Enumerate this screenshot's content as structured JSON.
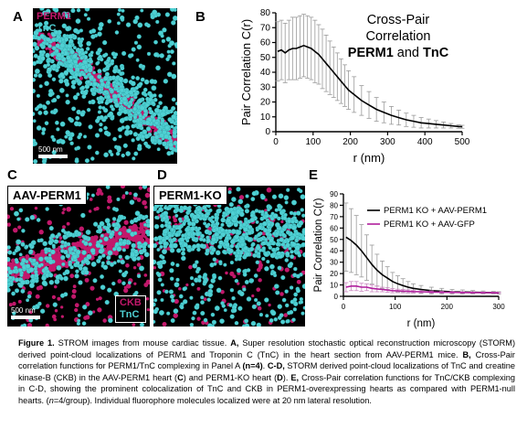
{
  "panels": {
    "a": {
      "letter": "A",
      "label1": "PERM1",
      "label2": "TnC",
      "scale": "500 nm"
    },
    "b": {
      "letter": "B"
    },
    "c": {
      "letter": "C",
      "title": "AAV-PERM1",
      "label1": "CKB",
      "label2": "TnC",
      "scale": "500 nm"
    },
    "d": {
      "letter": "D",
      "title": "PERM1-KO"
    },
    "e": {
      "letter": "E"
    }
  },
  "colors": {
    "perm1": "#c2186b",
    "tnc": "#4fd0d3",
    "ckb": "#c2186b",
    "black_line": "#000000",
    "gfp_line": "#b01f9d",
    "error": "#9a9a9a"
  },
  "chart_data": [
    {
      "type": "line",
      "title_lines": [
        "Cross-Pair",
        "Correlation"
      ],
      "title_bold": "PERM1",
      "title_and": " and ",
      "title_bold2": "TnC",
      "xlabel": "r (nm)",
      "ylabel": "Pair Correlation C(r)",
      "xlim": [
        0,
        500
      ],
      "ylim": [
        0,
        80
      ],
      "xticks": [
        0,
        100,
        200,
        300,
        400,
        500
      ],
      "yticks": [
        0,
        10,
        20,
        30,
        40,
        50,
        60,
        70,
        80
      ],
      "series": [
        {
          "x": [
            5,
            15,
            25,
            35,
            45,
            55,
            65,
            75,
            85,
            95,
            105,
            115,
            125,
            135,
            145,
            155,
            165,
            175,
            185,
            195,
            210,
            230,
            250,
            270,
            290,
            310,
            330,
            350,
            370,
            390,
            410,
            430,
            450,
            470,
            490,
            500
          ],
          "y": [
            54,
            55,
            53,
            55,
            56,
            56,
            57,
            58,
            57,
            56,
            54,
            52,
            49,
            46,
            43,
            40,
            37,
            34,
            31,
            28,
            25,
            21,
            18,
            15,
            13,
            11,
            9.5,
            8,
            7,
            6,
            5.5,
            5,
            4.5,
            4,
            3.5,
            3.3
          ],
          "err": [
            20,
            20,
            20,
            20,
            21,
            21,
            21,
            21,
            21,
            21,
            21,
            20,
            20,
            19,
            18,
            17,
            16,
            15,
            14,
            13,
            12,
            10,
            9,
            8,
            7,
            6,
            5,
            4.5,
            4,
            3.5,
            3,
            2.5,
            2,
            1.5,
            1.2,
            1
          ]
        }
      ]
    },
    {
      "type": "line",
      "xlabel": "r (nm)",
      "ylabel": "Pair Correlation C(r)",
      "xlim": [
        0,
        300
      ],
      "ylim": [
        0,
        90
      ],
      "xticks": [
        0,
        100,
        200,
        300
      ],
      "yticks": [
        0,
        10,
        20,
        30,
        40,
        50,
        60,
        70,
        80,
        90
      ],
      "series": [
        {
          "name": "PERM1 KO + AAV-PERM1",
          "x": [
            5,
            15,
            25,
            35,
            45,
            55,
            65,
            75,
            85,
            95,
            105,
            115,
            125,
            135,
            150,
            170,
            190,
            210,
            230,
            250,
            270,
            290,
            300
          ],
          "y": [
            52,
            49,
            45,
            40,
            34,
            28,
            23,
            19,
            16,
            13,
            11,
            9.5,
            8,
            7,
            6,
            5,
            4.5,
            4,
            3.8,
            3.6,
            3.4,
            3.2,
            3
          ],
          "err": [
            30,
            28,
            26,
            23,
            20,
            17,
            14,
            12,
            10,
            8,
            7,
            6,
            5,
            4,
            3.5,
            3,
            2.5,
            2,
            1.8,
            1.5,
            1.3,
            1.1,
            1
          ]
        },
        {
          "name": "PERM1 KO + AAV-GFP",
          "x": [
            5,
            15,
            25,
            35,
            45,
            55,
            65,
            75,
            85,
            95,
            105,
            115,
            125,
            135,
            150,
            170,
            190,
            210,
            230,
            250,
            270,
            290,
            300
          ],
          "y": [
            8,
            9,
            9,
            8,
            8,
            7,
            6.5,
            6,
            5.5,
            5,
            4.8,
            4.6,
            4.4,
            4.2,
            4,
            3.8,
            3.6,
            3.5,
            3.4,
            3.3,
            3.2,
            3.1,
            3
          ],
          "err": [
            4,
            4,
            4,
            3.5,
            3,
            3,
            2.5,
            2,
            2,
            1.8,
            1.5,
            1.5,
            1.3,
            1.2,
            1,
            1,
            0.8,
            0.8,
            0.7,
            0.6,
            0.6,
            0.5,
            0.5
          ]
        }
      ]
    }
  ],
  "caption": {
    "fig": "Figure 1.",
    "s1": " STROM images from mouse cardiac tissue. ",
    "a_lbl": "A,",
    "s2": " Super resolution stochastic optical reconstruction microscopy (STORM) derived point-cloud localizations of PERM1 and Troponin C (TnC) in the heart section from AAV-PERM1 mice. ",
    "b_lbl": "B,",
    "s3": " Cross-Pair correlation functions for PERM1/TnC complexing in Panel A ",
    "n1": "(n=4)",
    "s4": ". ",
    "cd_lbl": "C-D,",
    "s5": " STORM derived point-cloud localizations of TnC and creatine kinase-B (CKB) in the AAV-PERM1 heart (",
    "c_ref": "C",
    "s6": ") and PERM1-KO heart (",
    "d_ref": "D",
    "s7": "). ",
    "e_lbl": "E,",
    "s8": " Cross-Pair correlation functions for TnC/CKB complexing in C-D, showing the prominent colocalization of TnC and CKB in PERM1-overexpressing hearts as compared with PERM1-null hearts. (",
    "n2": "n",
    "s9": "=4/group). Individual fluorophore molecules localized were at 20 nm lateral resolution."
  }
}
